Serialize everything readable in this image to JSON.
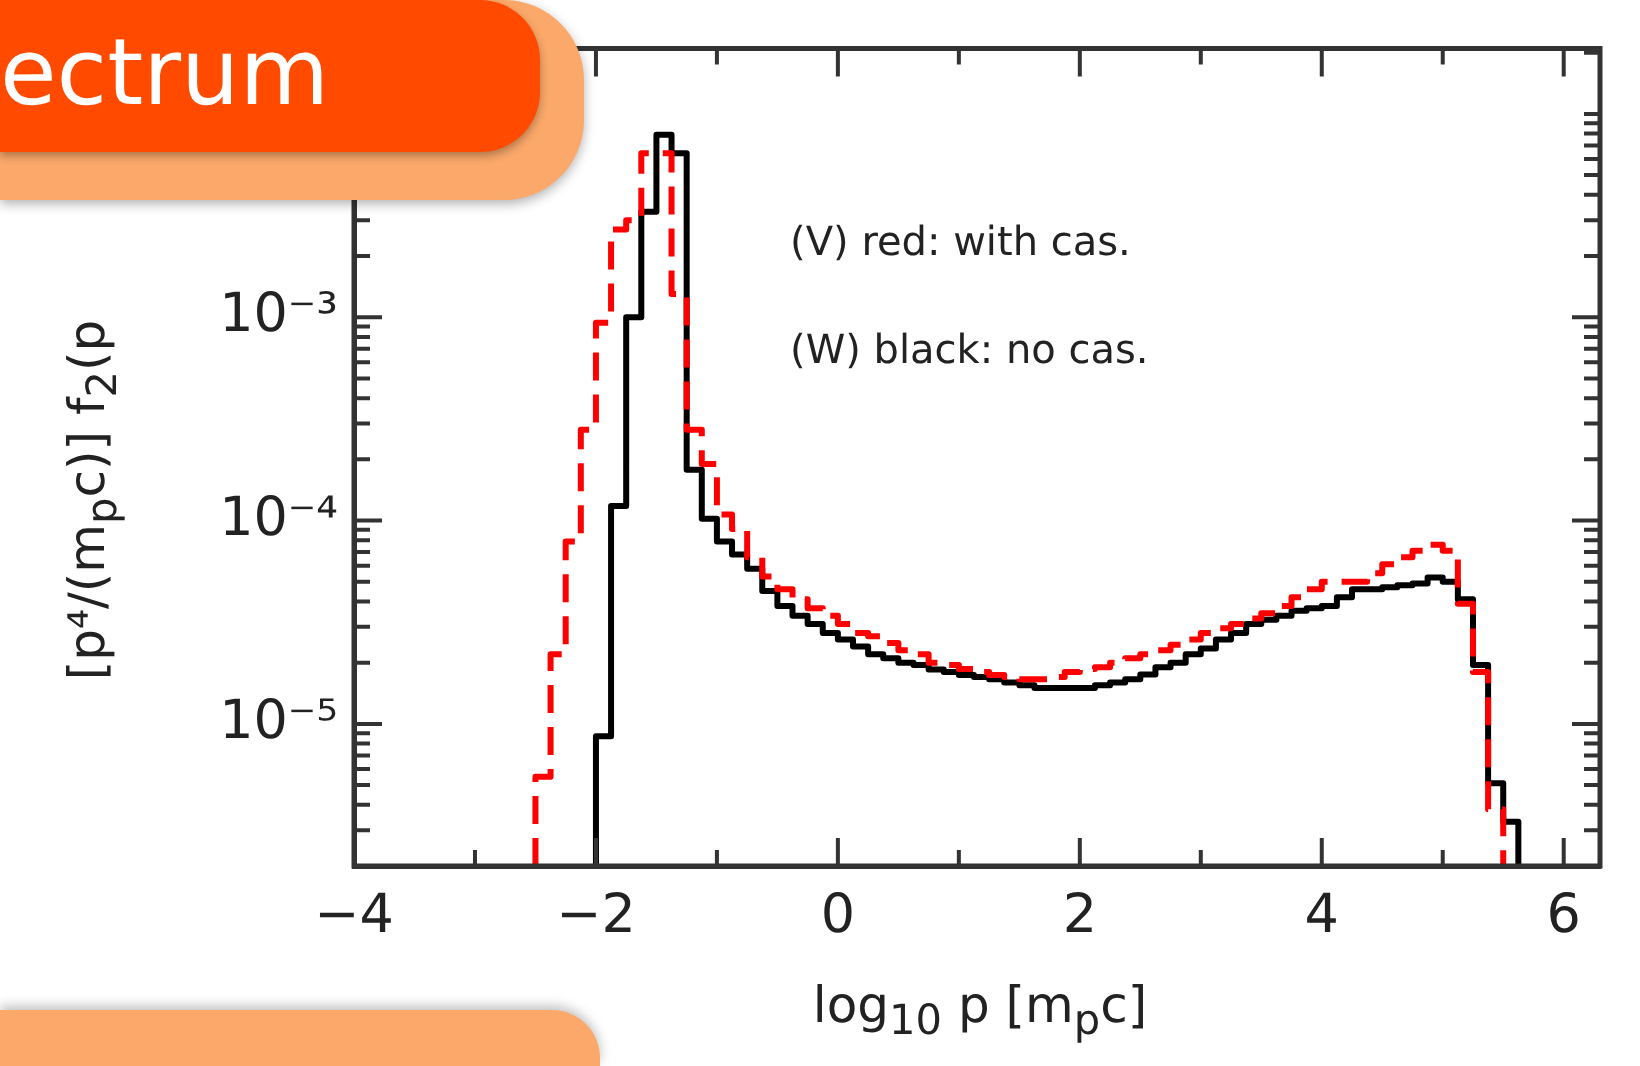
{
  "chart_data": {
    "type": "step",
    "title": "ectrum",
    "xlabel": "log$_{10}$ p [m$_{p}$c]",
    "ylabel": "[p⁴/(m$_{p}$c)] f$_{2}$(p",
    "annotations": [
      "(V) red: with cas.",
      "(W) black: no cas."
    ],
    "log": "y",
    "grid": false,
    "legend": false,
    "xlim": [
      -4,
      6.3
    ],
    "ylim": [
      2e-06,
      0.021
    ],
    "xticks": [
      -4,
      {
        "value": -3,
        "label": null
      },
      -2,
      {
        "value": -1,
        "label": null
      },
      0,
      {
        "value": 1,
        "label": null
      },
      2,
      {
        "value": 3,
        "label": null
      },
      4,
      {
        "value": 5,
        "label": null
      },
      6
    ],
    "yticks": [
      {
        "value": 2e-06,
        "label": null
      },
      {
        "value": 3e-06,
        "label": null
      },
      {
        "value": 4e-06,
        "label": null
      },
      {
        "value": 5e-06,
        "label": null
      },
      {
        "value": 6e-06,
        "label": null
      },
      {
        "value": 7e-06,
        "label": null
      },
      {
        "value": 8e-06,
        "label": null
      },
      {
        "value": 9e-06,
        "label": null
      },
      {
        "value": 1e-05,
        "label": "10⁻⁵"
      },
      {
        "value": 2e-05,
        "label": null
      },
      {
        "value": 3e-05,
        "label": null
      },
      {
        "value": 4e-05,
        "label": null
      },
      {
        "value": 5e-05,
        "label": null
      },
      {
        "value": 6e-05,
        "label": null
      },
      {
        "value": 7e-05,
        "label": null
      },
      {
        "value": 8e-05,
        "label": null
      },
      {
        "value": 9e-05,
        "label": null
      },
      {
        "value": 0.0001,
        "label": "10⁻⁴"
      },
      {
        "value": 0.0002,
        "label": null
      },
      {
        "value": 0.0003,
        "label": null
      },
      {
        "value": 0.0004,
        "label": null
      },
      {
        "value": 0.0005,
        "label": null
      },
      {
        "value": 0.0006,
        "label": null
      },
      {
        "value": 0.0007,
        "label": null
      },
      {
        "value": 0.0008,
        "label": null
      },
      {
        "value": 0.0009,
        "label": null
      },
      {
        "value": 0.001,
        "label": "10⁻³"
      },
      {
        "value": 0.002,
        "label": null
      },
      {
        "value": 0.003,
        "label": null
      },
      {
        "value": 0.004,
        "label": null
      },
      {
        "value": 0.005,
        "label": null
      },
      {
        "value": 0.006,
        "label": null
      },
      {
        "value": 0.007,
        "label": null
      },
      {
        "value": 0.008,
        "label": null
      },
      {
        "value": 0.009,
        "label": null
      },
      {
        "value": 0.01,
        "label": null
      },
      {
        "value": 0.02,
        "label": null
      }
    ],
    "series": [
      {
        "color": "#ff0000",
        "line_style": "dashed",
        "x": [
          -2.5,
          -2.5,
          -2.375,
          -2.25,
          -2.125,
          -2.0,
          -1.875,
          -1.75,
          -1.625,
          -1.5,
          -1.375,
          -1.25,
          -1.125,
          -1.0,
          -0.875,
          -0.75,
          -0.625,
          -0.5,
          -0.375,
          -0.25,
          -0.125,
          0.0,
          0.125,
          0.25,
          0.375,
          0.5,
          0.625,
          0.75,
          0.875,
          1.0,
          1.125,
          1.25,
          1.375,
          1.5,
          1.625,
          1.75,
          1.875,
          2.0,
          2.125,
          2.25,
          2.375,
          2.5,
          2.625,
          2.75,
          2.875,
          3.0,
          3.125,
          3.25,
          3.375,
          3.5,
          3.625,
          3.75,
          3.875,
          4.0,
          4.125,
          4.25,
          4.375,
          4.5,
          4.625,
          4.75,
          4.875,
          5.0,
          5.125,
          5.25,
          5.375,
          5.5
        ],
        "values": [
          2e-06,
          5.5e-06,
          2.2e-05,
          7.9e-05,
          0.00028,
          0.00094,
          0.0027,
          0.003,
          0.0064,
          0.0064,
          0.0013,
          0.00028,
          0.00019,
          0.000107,
          9.1e-05,
          6.6e-05,
          5.3e-05,
          4.6e-05,
          4.1e-05,
          3.7e-05,
          3.4e-05,
          3.1e-05,
          2.8e-05,
          2.7e-05,
          2.5e-05,
          2.3e-05,
          2.2e-05,
          2e-05,
          1.95e-05,
          1.86e-05,
          1.8e-05,
          1.74e-05,
          1.7e-05,
          1.66e-05,
          1.66e-05,
          1.7e-05,
          1.8e-05,
          1.86e-05,
          1.9e-05,
          2e-05,
          2.1e-05,
          2.2e-05,
          2.3e-05,
          2.45e-05,
          2.6e-05,
          2.8e-05,
          2.95e-05,
          3.1e-05,
          3.3e-05,
          3.5e-05,
          3.8e-05,
          4.2e-05,
          4.6e-05,
          5e-05,
          5e-05,
          5e-05,
          5.5e-05,
          6.1e-05,
          6.6e-05,
          7.1e-05,
          7.6e-05,
          7.1e-05,
          3.9e-05,
          1.8e-05,
          3.8e-06,
          2e-06
        ]
      },
      {
        "color": "#000000",
        "line_style": "solid",
        "x": [
          -2.0,
          -2.0,
          -1.875,
          -1.75,
          -1.625,
          -1.5,
          -1.375,
          -1.25,
          -1.125,
          -1.0,
          -0.875,
          -0.75,
          -0.625,
          -0.5,
          -0.375,
          -0.25,
          -0.125,
          0.0,
          0.125,
          0.25,
          0.375,
          0.5,
          0.625,
          0.75,
          0.875,
          1.0,
          1.125,
          1.25,
          1.375,
          1.5,
          1.625,
          1.75,
          1.875,
          2.0,
          2.125,
          2.25,
          2.375,
          2.5,
          2.625,
          2.75,
          2.875,
          3.0,
          3.125,
          3.25,
          3.375,
          3.5,
          3.625,
          3.75,
          3.875,
          4.0,
          4.125,
          4.25,
          4.375,
          4.5,
          4.625,
          4.75,
          4.875,
          5.0,
          5.125,
          5.25,
          5.375,
          5.5,
          5.625
        ],
        "values": [
          2e-06,
          8.7e-06,
          0.000118,
          0.001,
          0.0033,
          0.0079,
          0.0064,
          0.000178,
          0.000102,
          7.9e-05,
          6.8e-05,
          5.8e-05,
          4.5e-05,
          3.8e-05,
          3.4e-05,
          3.1e-05,
          2.8e-05,
          2.6e-05,
          2.4e-05,
          2.2e-05,
          2.1e-05,
          2e-05,
          1.95e-05,
          1.85e-05,
          1.8e-05,
          1.74e-05,
          1.7e-05,
          1.66e-05,
          1.6e-05,
          1.55e-05,
          1.5e-05,
          1.5e-05,
          1.5e-05,
          1.5e-05,
          1.55e-05,
          1.6e-05,
          1.66e-05,
          1.75e-05,
          1.9e-05,
          2e-05,
          2.2e-05,
          2.35e-05,
          2.6e-05,
          2.8e-05,
          3.1e-05,
          3.25e-05,
          3.4e-05,
          3.6e-05,
          3.7e-05,
          3.8e-05,
          4.2e-05,
          4.6e-05,
          4.6e-05,
          4.7e-05,
          4.8e-05,
          4.9e-05,
          5.25e-05,
          5e-05,
          4.1e-05,
          1.95e-05,
          5.1e-06,
          3.3e-06,
          2e-06
        ]
      }
    ]
  }
}
